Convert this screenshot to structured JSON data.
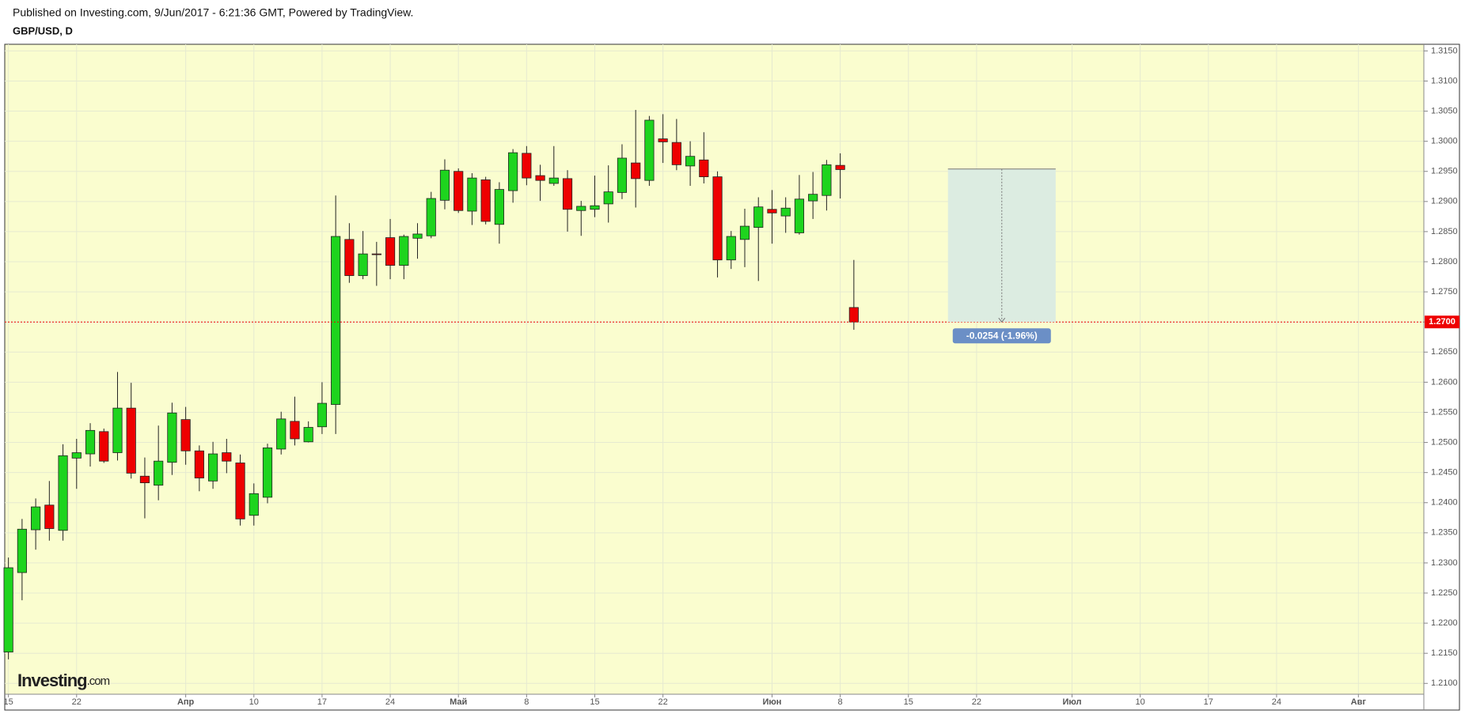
{
  "header": {
    "published": "Published on Investing.com, 9/Jun/2017 - 6:21:36 GMT, Powered by TradingView.",
    "symbol": "GBP/USD, D"
  },
  "chart_data": {
    "type": "candlestick",
    "categories": [
      "15",
      null,
      null,
      null,
      null,
      "22",
      null,
      null,
      null,
      null,
      null,
      null,
      null,
      "Апр",
      null,
      null,
      null,
      null,
      "10",
      null,
      null,
      null,
      null,
      "17",
      null,
      null,
      null,
      null,
      "24",
      null,
      null,
      null,
      null,
      "Май",
      null,
      null,
      null,
      null,
      "8",
      null,
      null,
      null,
      null,
      "15",
      null,
      null,
      null,
      null,
      "22",
      null,
      null,
      null,
      null,
      null,
      null,
      null,
      "Июн",
      null,
      null,
      null,
      null,
      "8",
      null,
      null,
      null,
      null,
      "15",
      null,
      null,
      null,
      null,
      "22",
      null,
      null,
      null,
      null,
      null,
      null,
      "Июл",
      null,
      null,
      null,
      null,
      "10",
      null,
      null,
      null,
      null,
      "17",
      null,
      null,
      null,
      null,
      "24",
      null,
      null,
      null,
      null,
      null,
      "Авг",
      null,
      null,
      null,
      null
    ],
    "open": [
      1.2152,
      1.2284,
      1.2355,
      1.2396,
      1.2354,
      1.2474,
      1.2481,
      1.2518,
      1.2483,
      1.2557,
      1.2444,
      1.2429,
      1.2467,
      1.2538,
      1.2486,
      1.2436,
      1.2483,
      1.2466,
      1.2379,
      1.2409,
      1.2489,
      1.2535,
      1.2501,
      1.2526,
      1.2563,
      1.2837,
      1.2777,
      1.2813,
      1.284,
      1.2794,
      1.2839,
      1.2843,
      1.2902,
      1.295,
      1.2884,
      1.2936,
      1.2862,
      1.2918,
      1.298,
      1.2943,
      1.293,
      1.2938,
      1.2885,
      1.2887,
      1.2896,
      1.2915,
      1.2964,
      1.2935,
      1.3004,
      1.2998,
      1.2959,
      1.2969,
      1.2941,
      1.2803,
      1.2837,
      1.2857,
      1.2887,
      1.2876,
      1.2848,
      1.2901,
      1.291,
      1.296,
      1.2724,
      null,
      null,
      null,
      null,
      null,
      null,
      null,
      null,
      null,
      null,
      null,
      null,
      null,
      null,
      null,
      null,
      null,
      null,
      null,
      null,
      null,
      null,
      null,
      null,
      null,
      null,
      null,
      null,
      null,
      null,
      null,
      null,
      null,
      null,
      null,
      null,
      null,
      null,
      null,
      null,
      null
    ],
    "high": [
      1.2309,
      1.2373,
      1.2407,
      1.2436,
      1.2497,
      1.2506,
      1.2532,
      1.2523,
      1.2617,
      1.2599,
      1.2475,
      1.2528,
      1.2566,
      1.2559,
      1.2495,
      1.2501,
      1.2506,
      1.248,
      1.2432,
      1.2498,
      1.2551,
      1.2576,
      1.2535,
      1.26,
      1.291,
      1.2864,
      1.2851,
      1.2833,
      1.2871,
      1.2845,
      1.2864,
      1.2916,
      1.297,
      1.2955,
      1.2947,
      1.2941,
      1.2932,
      1.2987,
      1.2992,
      1.2961,
      1.2992,
      1.2952,
      1.2901,
      1.2943,
      1.296,
      1.2995,
      1.3052,
      1.3042,
      1.3045,
      1.3037,
      1.3,
      1.3015,
      1.295,
      1.2851,
      1.2888,
      1.2907,
      1.2919,
      1.2907,
      1.2944,
      1.2949,
      1.2969,
      1.298,
      1.2803,
      null,
      null,
      null,
      null,
      null,
      null,
      null,
      null,
      null,
      null,
      null,
      null,
      null,
      null,
      null,
      null,
      null,
      null,
      null,
      null,
      null,
      null,
      null,
      null,
      null,
      null,
      null,
      null,
      null,
      null,
      null,
      null,
      null,
      null,
      null,
      null,
      null,
      null,
      null,
      null,
      null
    ],
    "low": [
      1.214,
      1.2238,
      1.2322,
      1.2337,
      1.2337,
      1.2423,
      1.246,
      1.2466,
      1.247,
      1.244,
      1.2374,
      1.2404,
      1.2446,
      1.2463,
      1.2419,
      1.2423,
      1.2449,
      1.2362,
      1.2362,
      1.2399,
      1.248,
      1.2495,
      1.25,
      1.2514,
      1.2514,
      1.2765,
      1.2771,
      1.276,
      1.2771,
      1.2771,
      1.2805,
      1.2839,
      1.2887,
      1.2881,
      1.2861,
      1.2862,
      1.283,
      1.2898,
      1.2927,
      1.2901,
      1.2926,
      1.285,
      1.2843,
      1.2874,
      1.2865,
      1.2904,
      1.289,
      1.2926,
      1.2964,
      1.2952,
      1.2926,
      1.293,
      1.2774,
      1.2788,
      1.2791,
      1.2768,
      1.283,
      1.2848,
      1.2845,
      1.2871,
      1.2885,
      1.2905,
      1.2687,
      null,
      null,
      null,
      null,
      null,
      null,
      null,
      null,
      null,
      null,
      null,
      null,
      null,
      null,
      null,
      null,
      null,
      null,
      null,
      null,
      null,
      null,
      null,
      null,
      null,
      null,
      null,
      null,
      null,
      null,
      null,
      null,
      null,
      null,
      null,
      null,
      null,
      null,
      null,
      null,
      null
    ],
    "close": [
      1.2292,
      1.2356,
      1.2393,
      1.2357,
      1.2478,
      1.2483,
      1.252,
      1.2469,
      1.2557,
      1.2449,
      1.2433,
      1.2469,
      1.2549,
      1.2486,
      1.2441,
      1.2481,
      1.2469,
      1.2373,
      1.2415,
      1.2491,
      1.2539,
      1.2506,
      1.2525,
      1.2565,
      1.2842,
      1.2777,
      1.2813,
      1.2812,
      1.2794,
      1.2842,
      1.2846,
      1.2905,
      1.2952,
      1.2885,
      1.2939,
      1.2867,
      1.292,
      1.2981,
      1.2939,
      1.2935,
      1.2939,
      1.2887,
      1.2892,
      1.2893,
      1.2916,
      1.2972,
      1.2938,
      1.3035,
      1.2999,
      1.2961,
      1.2975,
      1.2941,
      1.2803,
      1.2842,
      1.2859,
      1.2891,
      1.2881,
      1.2889,
      1.2904,
      1.2912,
      1.2961,
      1.2953,
      1.27,
      null,
      null,
      null,
      null,
      null,
      null,
      null,
      null,
      null,
      null,
      null,
      null,
      null,
      null,
      null,
      null,
      null,
      null,
      null,
      null,
      null,
      null,
      null,
      null,
      null,
      null,
      null,
      null,
      null,
      null,
      null,
      null,
      null,
      null,
      null,
      null,
      null,
      null,
      null,
      null,
      null
    ],
    "up_color": "#1ed41e",
    "down_color": "#ee0000",
    "ylim": [
      1.2082,
      1.3161
    ],
    "yticks": [
      {
        "value": 1.21,
        "label": "1.2100"
      },
      {
        "value": 1.215,
        "label": "1.2150"
      },
      {
        "value": 1.22,
        "label": "1.2200"
      },
      {
        "value": 1.225,
        "label": "1.2250"
      },
      {
        "value": 1.23,
        "label": "1.2300"
      },
      {
        "value": 1.235,
        "label": "1.2350"
      },
      {
        "value": 1.24,
        "label": "1.2400"
      },
      {
        "value": 1.245,
        "label": "1.2450"
      },
      {
        "value": 1.25,
        "label": "1.2500"
      },
      {
        "value": 1.255,
        "label": "1.2550"
      },
      {
        "value": 1.26,
        "label": "1.2600"
      },
      {
        "value": 1.265,
        "label": "1.2650"
      },
      {
        "value": 1.27,
        "label": "1.2700"
      },
      {
        "value": 1.275,
        "label": "1.2750"
      },
      {
        "value": 1.28,
        "label": "1.2800"
      },
      {
        "value": 1.285,
        "label": "1.2850"
      },
      {
        "value": 1.29,
        "label": "1.2900"
      },
      {
        "value": 1.295,
        "label": "1.2950"
      },
      {
        "value": 1.3,
        "label": "1.3000"
      },
      {
        "value": 1.305,
        "label": "1.3050"
      },
      {
        "value": 1.31,
        "label": "1.3100"
      },
      {
        "value": 1.315,
        "label": "1.3150"
      }
    ],
    "grid": true,
    "last_price": {
      "value": 1.27,
      "label": "1.2700"
    },
    "measure": {
      "from": 68.9,
      "to": 76.8,
      "start": 1.2954,
      "end": 1.27,
      "label": "-0.0254 (-1.96%)"
    },
    "watermark": {
      "brand": "Investing",
      "suffix": ".com"
    }
  }
}
